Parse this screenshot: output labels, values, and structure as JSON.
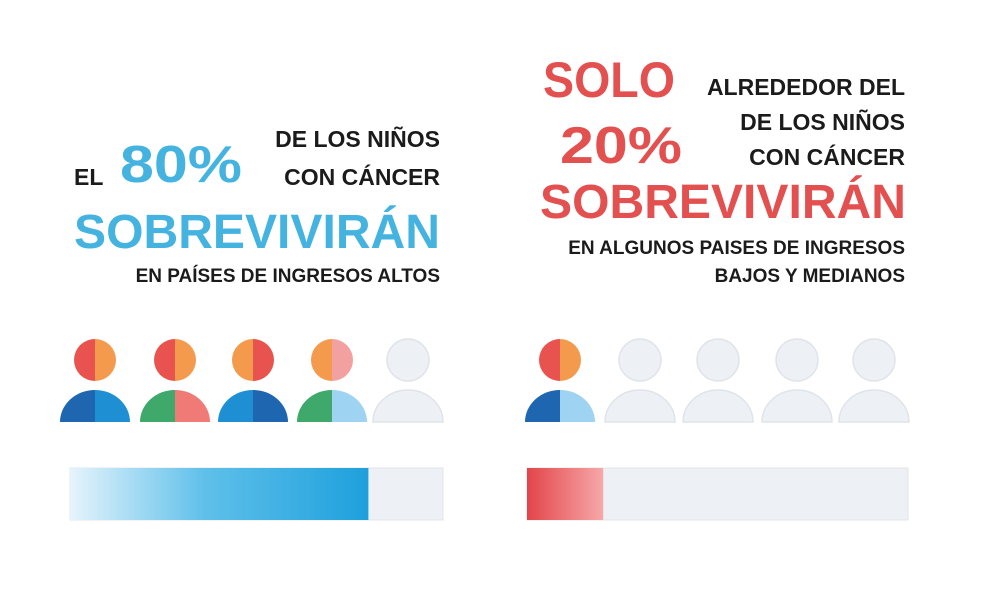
{
  "left": {
    "prefix": "EL",
    "percent": 80,
    "percent_label": "80%",
    "line1": "DE LOS NIÑOS",
    "line2": "CON CÁNCER",
    "verb": "SOBREVIVIRÁN",
    "note": "EN PAÍSES DE INGRESOS ALTOS"
  },
  "right": {
    "prefix": "SOLO",
    "line0": "ALREDEDOR DEL",
    "percent": 20,
    "percent_label": "20%",
    "line1": "DE LOS NIÑOS",
    "line2": "CON CÁNCER",
    "verb": "SOBREVIVIRÁN",
    "note_lines": [
      "EN ALGUNOS PAISES DE INGRESOS",
      "BAJOS Y MEDIANOS"
    ]
  }
}
